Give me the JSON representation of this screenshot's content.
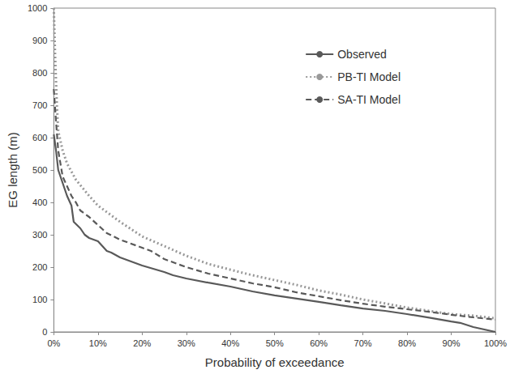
{
  "chart_data": {
    "type": "line",
    "x_label": "Probability of exceedance",
    "y_label": "EG length (m)",
    "xlim": [
      0,
      100
    ],
    "xticks": [
      {
        "value": 0,
        "label": "0%"
      },
      {
        "value": 10,
        "label": "10%"
      },
      {
        "value": 20,
        "label": "20%"
      },
      {
        "value": 30,
        "label": "30%"
      },
      {
        "value": 40,
        "label": "40%"
      },
      {
        "value": 50,
        "label": "50%"
      },
      {
        "value": 60,
        "label": "60%"
      },
      {
        "value": 70,
        "label": "70%"
      },
      {
        "value": 80,
        "label": "80%"
      },
      {
        "value": 90,
        "label": "90%"
      },
      {
        "value": 100,
        "label": "100%"
      }
    ],
    "ylim": [
      0,
      1000
    ],
    "yticks": [
      0,
      100,
      200,
      300,
      400,
      500,
      600,
      700,
      800,
      900,
      1000
    ],
    "grid": false,
    "legend": "upper right",
    "series": [
      {
        "name": "Observed",
        "color": "#595959",
        "line_style": "solid",
        "x": [
          0,
          0.5,
          1,
          2,
          3,
          4,
          4.5,
          6,
          7,
          8,
          10,
          11,
          12,
          13,
          15,
          20,
          25,
          27,
          30,
          35,
          40,
          45,
          50,
          55,
          60,
          65,
          70,
          75,
          80,
          85,
          90,
          92,
          95,
          100
        ],
        "values": [
          610,
          560,
          500,
          460,
          420,
          390,
          340,
          320,
          300,
          290,
          280,
          265,
          250,
          245,
          230,
          205,
          185,
          175,
          165,
          152,
          140,
          125,
          113,
          103,
          93,
          82,
          72,
          65,
          55,
          44,
          32,
          28,
          15,
          0
        ]
      },
      {
        "name": "PB-TI Model",
        "color": "#999999",
        "line_style": "dotted",
        "x": [
          0,
          0.3,
          0.7,
          1,
          2,
          3,
          5,
          8,
          10,
          15,
          20,
          25,
          30,
          35,
          40,
          45,
          50,
          55,
          60,
          65,
          70,
          75,
          80,
          85,
          90,
          95,
          100
        ],
        "values": [
          1000,
          850,
          700,
          620,
          560,
          520,
          470,
          420,
          390,
          340,
          295,
          265,
          235,
          210,
          192,
          175,
          160,
          145,
          128,
          115,
          100,
          88,
          75,
          65,
          55,
          50,
          42
        ]
      },
      {
        "name": "SA-TI Model",
        "color": "#595959",
        "line_style": "dashed",
        "x": [
          0,
          0.5,
          1,
          2,
          3,
          4,
          5,
          6,
          8,
          10,
          12,
          15,
          20,
          22,
          25,
          30,
          35,
          40,
          45,
          50,
          55,
          60,
          65,
          70,
          75,
          80,
          85,
          90,
          95,
          100
        ],
        "values": [
          750,
          650,
          560,
          480,
          450,
          420,
          400,
          375,
          355,
          330,
          305,
          285,
          260,
          250,
          225,
          200,
          180,
          165,
          150,
          138,
          122,
          110,
          98,
          87,
          78,
          70,
          62,
          53,
          45,
          38
        ]
      }
    ]
  }
}
